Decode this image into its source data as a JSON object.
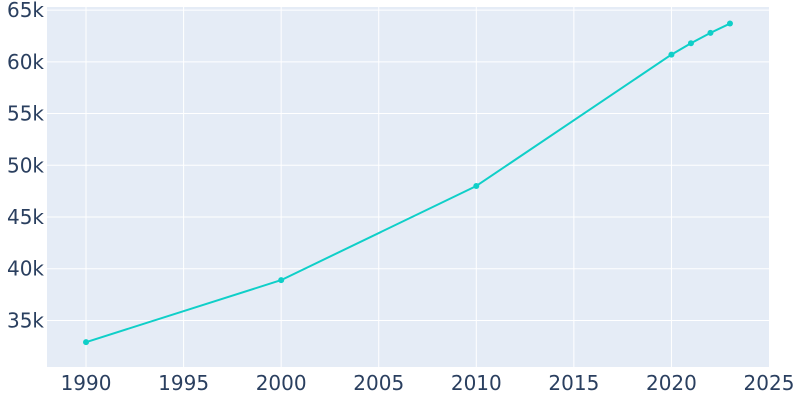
{
  "chart_data": {
    "type": "line",
    "title": "",
    "xlabel": "",
    "ylabel": "",
    "xlim": [
      1988,
      2025
    ],
    "ylim": [
      30500,
      65300
    ],
    "x_ticks": [
      1990,
      1995,
      2000,
      2005,
      2010,
      2015,
      2020,
      2025
    ],
    "x_tick_labels": [
      "1990",
      "1995",
      "2000",
      "2005",
      "2010",
      "2015",
      "2020",
      "2025"
    ],
    "y_ticks": [
      35000,
      40000,
      45000,
      50000,
      55000,
      60000,
      65000
    ],
    "y_tick_labels": [
      "35k",
      "40k",
      "45k",
      "50k",
      "55k",
      "60k",
      "65k"
    ],
    "grid": true,
    "legend": "none",
    "series": [
      {
        "x": [
          1990,
          2000,
          2010,
          2020,
          2021,
          2022,
          2023
        ],
        "y": [
          32900,
          38900,
          48000,
          60700,
          61800,
          62800,
          63700
        ]
      }
    ],
    "colors": {
      "line": "#0fcfc8",
      "plot_background": "#e5ecf6",
      "grid": "#ffffff",
      "tick_text": "#2a3f5f"
    }
  }
}
